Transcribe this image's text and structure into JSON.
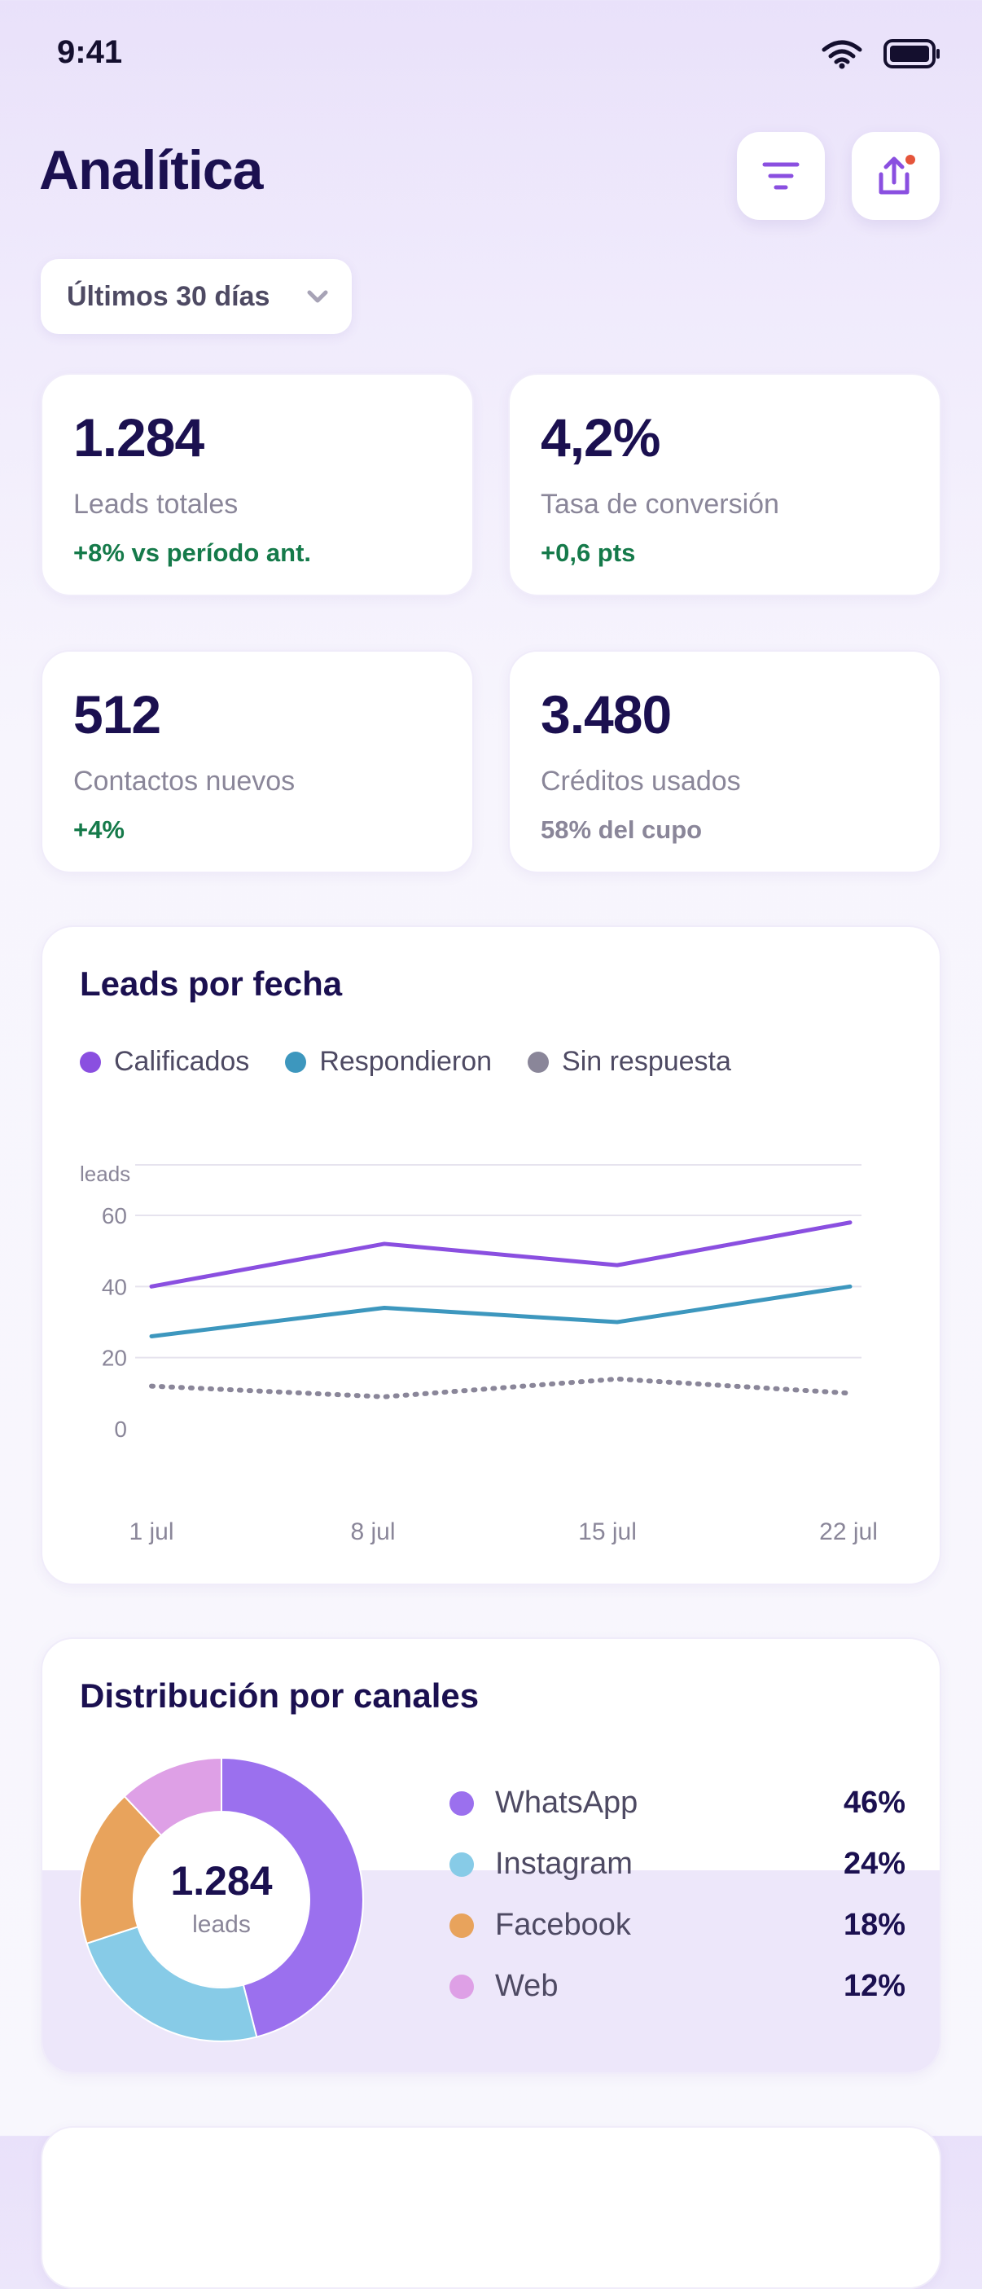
{
  "status": {
    "time": "9:41"
  },
  "header": {
    "title": "Analítica"
  },
  "filter": {
    "range": "Últimos 30 días"
  },
  "kpis": [
    {
      "value": "1.284",
      "label": "Leads totales",
      "delta": "+8% vs período ant."
    },
    {
      "value": "4,2%",
      "label": "Tasa de conversión",
      "delta": "+0,6 pts"
    },
    {
      "value": "512",
      "label": "Contactos nuevos",
      "delta": "+4%"
    },
    {
      "value": "3.480",
      "label": "Créditos usados",
      "delta": "58% del cupo"
    }
  ],
  "leads_chart": {
    "title": "Leads por fecha",
    "legend": [
      "Calificados",
      "Respondieron",
      "Sin respuesta"
    ],
    "y_unit": "leads"
  },
  "channels": {
    "title": "Distribución por canales",
    "total": "1.284",
    "total_label": "leads",
    "items": [
      {
        "name": "WhatsApp",
        "pct": "46%",
        "color": "#9b70ee"
      },
      {
        "name": "Instagram",
        "pct": "24%",
        "color": "#87cbe7"
      },
      {
        "name": "Facebook",
        "pct": "18%",
        "color": "#e8a35c"
      },
      {
        "name": "Web",
        "pct": "12%",
        "color": "#dea0e6"
      }
    ]
  },
  "chart_data": [
    {
      "type": "line",
      "title": "Leads por fecha",
      "ylabel": "leads",
      "x": [
        "1 jul",
        "8 jul",
        "15 jul",
        "22 jul"
      ],
      "ylim": [
        0,
        60
      ],
      "yticks": [
        0,
        20,
        40,
        60
      ],
      "series": [
        {
          "name": "Calificados",
          "values": [
            40,
            52,
            46,
            58
          ],
          "color": "#8a4fe0",
          "style": "solid"
        },
        {
          "name": "Respondieron",
          "values": [
            26,
            34,
            30,
            40
          ],
          "color": "#3d97be",
          "style": "solid"
        },
        {
          "name": "Sin respuesta",
          "values": [
            12,
            9,
            14,
            10
          ],
          "color": "#8a8699",
          "style": "dotted"
        }
      ],
      "grid": true,
      "legend": "top-left"
    },
    {
      "type": "pie",
      "title": "Distribución por canales",
      "categories": [
        "WhatsApp",
        "Instagram",
        "Facebook",
        "Web"
      ],
      "values": [
        46,
        24,
        18,
        12
      ],
      "center_text": "1.284 leads"
    }
  ]
}
